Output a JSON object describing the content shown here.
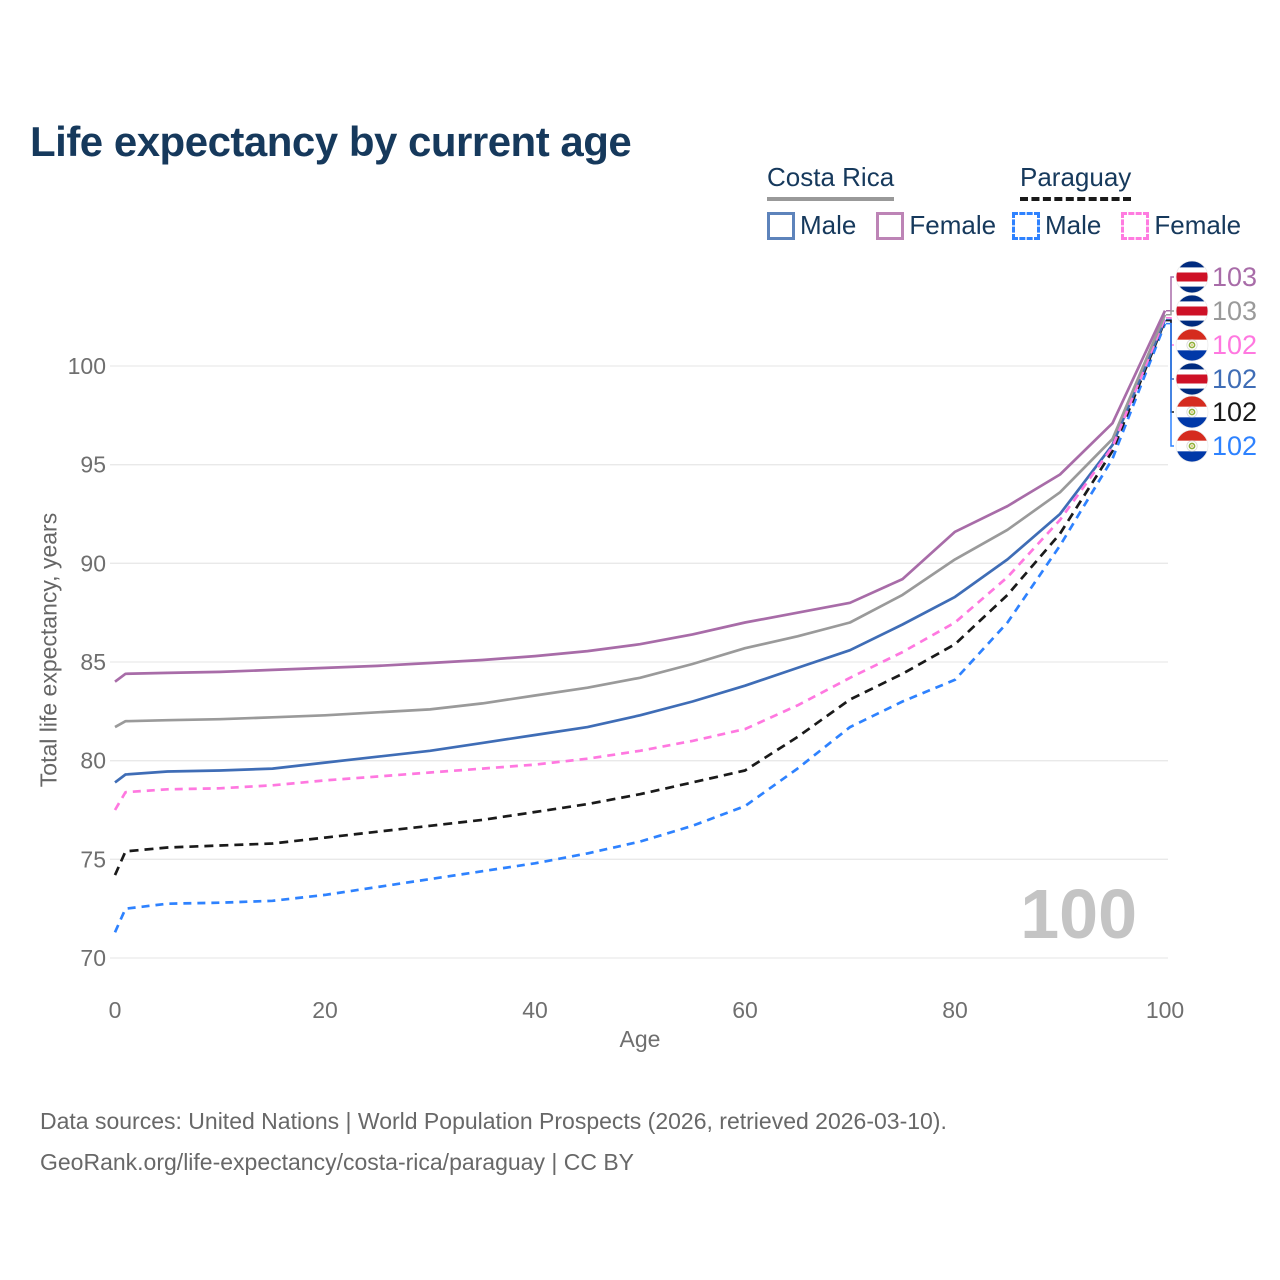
{
  "page": {
    "title": "Life expectancy by current age"
  },
  "legend": {
    "groups": [
      {
        "country": "Costa Rica",
        "underline": {
          "color": "#999999",
          "style": "solid"
        },
        "items": [
          {
            "label": "Male",
            "color": "#5d83bb",
            "style": "solid"
          },
          {
            "label": "Female",
            "color": "#bd84b6",
            "style": "solid"
          }
        ]
      },
      {
        "country": "Paraguay",
        "underline": {
          "color": "#1a1a1a",
          "style": "dashed"
        },
        "items": [
          {
            "label": "Male",
            "color": "#2e82ff",
            "style": "dashed"
          },
          {
            "label": "Female",
            "color": "#ff7be0",
            "style": "dashed"
          }
        ]
      }
    ]
  },
  "chart_data": {
    "type": "line",
    "title": "Life expectancy by current age",
    "xlabel": "Age",
    "ylabel": "Total life expectancy, years",
    "x_ticks": [
      0,
      20,
      40,
      60,
      80,
      100
    ],
    "y_ticks": [
      70,
      75,
      80,
      85,
      90,
      95,
      100
    ],
    "xlim": [
      0,
      100
    ],
    "ylim": [
      68.8,
      104
    ],
    "grid": "horizontal",
    "legend_position": "top-right",
    "age_watermark": "100",
    "ages": [
      0,
      1,
      5,
      10,
      15,
      20,
      25,
      30,
      35,
      40,
      45,
      50,
      55,
      60,
      65,
      70,
      75,
      80,
      85,
      90,
      95,
      100
    ],
    "series": [
      {
        "name": "Costa Rica Female",
        "country": "Costa Rica",
        "sex": "Female",
        "color": "#a86ca8",
        "dashed": false,
        "flag": "costa-rica",
        "end_label": "103",
        "values": [
          84.0,
          84.4,
          84.45,
          84.5,
          84.6,
          84.7,
          84.8,
          84.95,
          85.1,
          85.3,
          85.55,
          85.9,
          86.4,
          87.0,
          87.5,
          88.0,
          89.2,
          91.6,
          92.9,
          94.5,
          97.1,
          102.8
        ]
      },
      {
        "name": "Costa Rica Both sexes",
        "country": "Costa Rica",
        "sex": "Both",
        "color": "#9a9a9a",
        "dashed": false,
        "flag": "costa-rica",
        "end_label": "103",
        "values": [
          81.7,
          82.0,
          82.05,
          82.1,
          82.2,
          82.3,
          82.45,
          82.6,
          82.9,
          83.3,
          83.7,
          84.2,
          84.9,
          85.7,
          86.3,
          87.0,
          88.4,
          90.2,
          91.7,
          93.6,
          96.3,
          102.6
        ]
      },
      {
        "name": "Paraguay Female",
        "country": "Paraguay",
        "sex": "Female",
        "color": "#ff78e0",
        "dashed": true,
        "flag": "paraguay",
        "end_label": "102",
        "values": [
          77.5,
          78.4,
          78.55,
          78.6,
          78.75,
          79.0,
          79.2,
          79.4,
          79.6,
          79.8,
          80.1,
          80.5,
          81.0,
          81.6,
          82.8,
          84.2,
          85.5,
          87.0,
          89.3,
          92.2,
          95.9,
          102.45
        ]
      },
      {
        "name": "Costa Rica Male",
        "country": "Costa Rica",
        "sex": "Male",
        "color": "#3f6db6",
        "dashed": false,
        "flag": "costa-rica",
        "end_label": "102",
        "values": [
          78.9,
          79.3,
          79.45,
          79.5,
          79.6,
          79.9,
          80.2,
          80.5,
          80.9,
          81.3,
          81.7,
          82.3,
          83.0,
          83.8,
          84.7,
          85.6,
          86.9,
          88.3,
          90.2,
          92.5,
          96.0,
          102.35
        ]
      },
      {
        "name": "Paraguay Both sexes",
        "country": "Paraguay",
        "sex": "Both",
        "color": "#1a1a1a",
        "dashed": true,
        "flag": "paraguay",
        "end_label": "102",
        "values": [
          74.2,
          75.4,
          75.6,
          75.7,
          75.8,
          76.1,
          76.4,
          76.7,
          77.0,
          77.4,
          77.8,
          78.3,
          78.9,
          79.5,
          81.2,
          83.1,
          84.4,
          85.9,
          88.4,
          91.5,
          95.7,
          102.3
        ]
      },
      {
        "name": "Paraguay Male",
        "country": "Paraguay",
        "sex": "Male",
        "color": "#2e82ff",
        "dashed": true,
        "flag": "paraguay",
        "end_label": "102",
        "values": [
          71.3,
          72.5,
          72.75,
          72.8,
          72.9,
          73.2,
          73.6,
          74.0,
          74.4,
          74.8,
          75.3,
          75.9,
          76.7,
          77.7,
          79.6,
          81.7,
          83.0,
          84.1,
          87.0,
          90.9,
          95.3,
          102.15
        ]
      }
    ]
  },
  "footer": {
    "line1": "Data sources: United Nations | World Population Prospects (2026, retrieved 2026-03-10).",
    "line2": "GeoRank.org/life-expectancy/costa-rica/paraguay | CC BY"
  }
}
